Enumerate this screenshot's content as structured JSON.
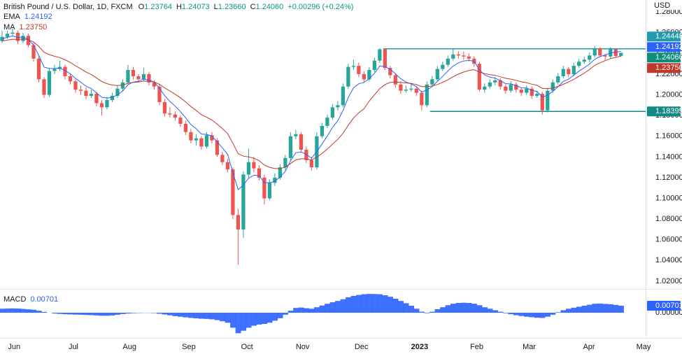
{
  "chart_data": {
    "type": "candlestick",
    "title": "British Pound / U.S. Dollar, 1D, FXCM",
    "quote": [
      {
        "key": "O",
        "value": "1.23764"
      },
      {
        "key": "H",
        "value": "1.24073"
      },
      {
        "key": "L",
        "value": "1.23660"
      },
      {
        "key": "C",
        "value": "1.24060"
      }
    ],
    "change": "+0.00296 (+0.24%)",
    "currency": "USD",
    "up_color": "#26a69a",
    "down_color": "#ef5350",
    "ohlc": [
      [
        1.252,
        1.262,
        1.25,
        1.256
      ],
      [
        1.256,
        1.262,
        1.254,
        1.259
      ],
      [
        1.259,
        1.264,
        1.257,
        1.26
      ],
      [
        1.26,
        1.262,
        1.249,
        1.252
      ],
      [
        1.252,
        1.26,
        1.25,
        1.257
      ],
      [
        1.257,
        1.259,
        1.246,
        1.248
      ],
      [
        1.248,
        1.25,
        1.232,
        1.235
      ],
      [
        1.235,
        1.238,
        1.212,
        1.215
      ],
      [
        1.215,
        1.217,
        1.197,
        1.2
      ],
      [
        1.2,
        1.226,
        1.198,
        1.223
      ],
      [
        1.223,
        1.229,
        1.22,
        1.225
      ],
      [
        1.225,
        1.233,
        1.223,
        1.227
      ],
      [
        1.227,
        1.229,
        1.215,
        1.218
      ],
      [
        1.218,
        1.221,
        1.21,
        1.213
      ],
      [
        1.213,
        1.215,
        1.202,
        1.205
      ],
      [
        1.205,
        1.209,
        1.2,
        1.204
      ],
      [
        1.204,
        1.207,
        1.196,
        1.199
      ],
      [
        1.199,
        1.205,
        1.197,
        1.201
      ],
      [
        1.201,
        1.203,
        1.189,
        1.192
      ],
      [
        1.192,
        1.195,
        1.18,
        1.188
      ],
      [
        1.188,
        1.198,
        1.186,
        1.195
      ],
      [
        1.195,
        1.202,
        1.193,
        1.199
      ],
      [
        1.199,
        1.209,
        1.197,
        1.206
      ],
      [
        1.206,
        1.215,
        1.204,
        1.212
      ],
      [
        1.212,
        1.229,
        1.21,
        1.224
      ],
      [
        1.224,
        1.227,
        1.215,
        1.218
      ],
      [
        1.218,
        1.22,
        1.212,
        1.215
      ],
      [
        1.215,
        1.226,
        1.213,
        1.22
      ],
      [
        1.22,
        1.222,
        1.209,
        1.212
      ],
      [
        1.212,
        1.214,
        1.205,
        1.208
      ],
      [
        1.208,
        1.21,
        1.19,
        1.193
      ],
      [
        1.193,
        1.196,
        1.179,
        1.182
      ],
      [
        1.182,
        1.188,
        1.178,
        1.181
      ],
      [
        1.181,
        1.184,
        1.175,
        1.178
      ],
      [
        1.178,
        1.18,
        1.169,
        1.172
      ],
      [
        1.172,
        1.175,
        1.161,
        1.164
      ],
      [
        1.164,
        1.167,
        1.153,
        1.156
      ],
      [
        1.156,
        1.162,
        1.151,
        1.158
      ],
      [
        1.158,
        1.16,
        1.147,
        1.15
      ],
      [
        1.15,
        1.164,
        1.148,
        1.161
      ],
      [
        1.161,
        1.164,
        1.153,
        1.156
      ],
      [
        1.156,
        1.158,
        1.14,
        1.142
      ],
      [
        1.142,
        1.145,
        1.132,
        1.135
      ],
      [
        1.135,
        1.138,
        1.125,
        1.128
      ],
      [
        1.128,
        1.13,
        1.08,
        1.084
      ],
      [
        1.084,
        1.09,
        1.036,
        1.07
      ],
      [
        1.07,
        1.126,
        1.062,
        1.123
      ],
      [
        1.123,
        1.148,
        1.12,
        1.135
      ],
      [
        1.135,
        1.14,
        1.125,
        1.129
      ],
      [
        1.129,
        1.132,
        1.117,
        1.12
      ],
      [
        1.12,
        1.123,
        1.094,
        1.1
      ],
      [
        1.1,
        1.118,
        1.098,
        1.115
      ],
      [
        1.115,
        1.124,
        1.112,
        1.12
      ],
      [
        1.12,
        1.133,
        1.118,
        1.13
      ],
      [
        1.13,
        1.142,
        1.127,
        1.139
      ],
      [
        1.139,
        1.164,
        1.137,
        1.16
      ],
      [
        1.16,
        1.166,
        1.157,
        1.162
      ],
      [
        1.162,
        1.164,
        1.144,
        1.147
      ],
      [
        1.147,
        1.15,
        1.134,
        1.137
      ],
      [
        1.137,
        1.14,
        1.127,
        1.13
      ],
      [
        1.13,
        1.164,
        1.128,
        1.16
      ],
      [
        1.16,
        1.173,
        1.158,
        1.17
      ],
      [
        1.17,
        1.181,
        1.168,
        1.178
      ],
      [
        1.178,
        1.191,
        1.176,
        1.188
      ],
      [
        1.188,
        1.194,
        1.185,
        1.19
      ],
      [
        1.19,
        1.211,
        1.188,
        1.208
      ],
      [
        1.208,
        1.23,
        1.206,
        1.227
      ],
      [
        1.227,
        1.234,
        1.224,
        1.228
      ],
      [
        1.228,
        1.231,
        1.217,
        1.22
      ],
      [
        1.22,
        1.223,
        1.212,
        1.215
      ],
      [
        1.215,
        1.227,
        1.213,
        1.224
      ],
      [
        1.224,
        1.236,
        1.222,
        1.233
      ],
      [
        1.233,
        1.245,
        1.231,
        1.244
      ],
      [
        1.244,
        1.245,
        1.224,
        1.226
      ],
      [
        1.226,
        1.228,
        1.216,
        1.219
      ],
      [
        1.219,
        1.221,
        1.207,
        1.21
      ],
      [
        1.21,
        1.213,
        1.201,
        1.204
      ],
      [
        1.204,
        1.209,
        1.202,
        1.205
      ],
      [
        1.205,
        1.21,
        1.203,
        1.206
      ],
      [
        1.206,
        1.208,
        1.199,
        1.202
      ],
      [
        1.202,
        1.204,
        1.185,
        1.19
      ],
      [
        1.19,
        1.213,
        1.188,
        1.21
      ],
      [
        1.21,
        1.218,
        1.208,
        1.215
      ],
      [
        1.215,
        1.228,
        1.213,
        1.225
      ],
      [
        1.225,
        1.232,
        1.223,
        1.229
      ],
      [
        1.229,
        1.238,
        1.227,
        1.235
      ],
      [
        1.235,
        1.244,
        1.233,
        1.239
      ],
      [
        1.239,
        1.242,
        1.235,
        1.238
      ],
      [
        1.238,
        1.242,
        1.234,
        1.237
      ],
      [
        1.237,
        1.24,
        1.232,
        1.235
      ],
      [
        1.235,
        1.237,
        1.227,
        1.23
      ],
      [
        1.23,
        1.232,
        1.203,
        1.205
      ],
      [
        1.205,
        1.211,
        1.202,
        1.208
      ],
      [
        1.208,
        1.215,
        1.206,
        1.212
      ],
      [
        1.212,
        1.217,
        1.209,
        1.214
      ],
      [
        1.214,
        1.216,
        1.205,
        1.208
      ],
      [
        1.208,
        1.21,
        1.201,
        1.204
      ],
      [
        1.204,
        1.213,
        1.202,
        1.21
      ],
      [
        1.21,
        1.212,
        1.202,
        1.205
      ],
      [
        1.205,
        1.207,
        1.199,
        1.202
      ],
      [
        1.202,
        1.209,
        1.2,
        1.206
      ],
      [
        1.206,
        1.208,
        1.196,
        1.199
      ],
      [
        1.199,
        1.204,
        1.197,
        1.201
      ],
      [
        1.201,
        1.203,
        1.181,
        1.185
      ],
      [
        1.185,
        1.207,
        1.183,
        1.204
      ],
      [
        1.204,
        1.215,
        1.202,
        1.212
      ],
      [
        1.212,
        1.221,
        1.21,
        1.218
      ],
      [
        1.218,
        1.228,
        1.216,
        1.225
      ],
      [
        1.225,
        1.227,
        1.217,
        1.22
      ],
      [
        1.22,
        1.231,
        1.218,
        1.228
      ],
      [
        1.228,
        1.235,
        1.226,
        1.232
      ],
      [
        1.232,
        1.237,
        1.23,
        1.234
      ],
      [
        1.234,
        1.241,
        1.231,
        1.238
      ],
      [
        1.238,
        1.247,
        1.236,
        1.245
      ],
      [
        1.245,
        1.246,
        1.236,
        1.238
      ],
      [
        1.238,
        1.24,
        1.234,
        1.237
      ],
      [
        1.237,
        1.246,
        1.235,
        1.244
      ],
      [
        1.244,
        1.245,
        1.236,
        1.2376
      ],
      [
        1.23764,
        1.24073,
        1.2366,
        1.2406
      ]
    ],
    "series": [
      {
        "name": "EMA",
        "value_label": "1.24192",
        "color": "#2962ff",
        "values": [
          1.254,
          1.2555,
          1.2569,
          1.2554,
          1.2559,
          1.2535,
          1.248,
          1.2381,
          1.2267,
          1.2256,
          1.2254,
          1.2259,
          1.2235,
          1.2204,
          1.2158,
          1.2123,
          1.2083,
          1.2061,
          1.2019,
          1.1977,
          1.1969,
          1.1975,
          1.2001,
          1.2037,
          1.2098,
          1.2123,
          1.2131,
          1.2152,
          1.2142,
          1.2123,
          1.2065,
          1.1992,
          1.1937,
          1.189,
          1.1839,
          1.1779,
          1.1713,
          1.1673,
          1.1621,
          1.1618,
          1.1601,
          1.1547,
          1.1488,
          1.1426,
          1.125,
          1.1085,
          1.1129,
          1.1195,
          1.1224,
          1.1217,
          1.1152,
          1.1151,
          1.1166,
          1.1206,
          1.1261,
          1.1363,
          1.144,
          1.1449,
          1.1425,
          1.1388,
          1.1452,
          1.1526,
          1.1602,
          1.1685,
          1.175,
          1.1849,
          1.1975,
          1.2067,
          1.2107,
          1.212,
          1.2156,
          1.2208,
          1.2278,
          1.2273,
          1.2248,
          1.2204,
          1.2155,
          1.2124,
          1.2105,
          1.208,
          1.2026,
          1.2048,
          1.2079,
          1.213,
          1.2178,
          1.223,
          1.2278,
          1.2309,
          1.2327,
          1.2334,
          1.2324,
          1.2242,
          1.2193,
          1.2171,
          1.2162,
          1.2137,
          1.2108,
          1.2106,
          1.2089,
          1.2068,
          1.2066,
          1.2043,
          1.2033,
          1.1978,
          1.1997,
          1.2034,
          1.2078,
          1.213,
          1.2151,
          1.219,
          1.2229,
          1.2262,
          1.2297,
          1.2343,
          1.237,
          1.2385,
          1.2405,
          1.2412,
          1.24192
        ]
      },
      {
        "name": "MA",
        "value_label": "1.23750",
        "color": "#c0392b",
        "values": [
          1.252,
          1.2528,
          1.2537,
          1.2535,
          1.2539,
          1.2532,
          1.251,
          1.2467,
          1.2411,
          1.2389,
          1.2372,
          1.236,
          1.2338,
          1.2313,
          1.2281,
          1.2252,
          1.2221,
          1.2196,
          1.2163,
          1.2129,
          1.2108,
          1.2094,
          1.209,
          1.2094,
          1.2112,
          1.212,
          1.2124,
          1.2133,
          1.2131,
          1.2125,
          1.2102,
          1.2068,
          1.2037,
          1.2006,
          1.1972,
          1.1932,
          1.1887,
          1.185,
          1.1808,
          1.1784,
          1.1757,
          1.1717,
          1.1673,
          1.1626,
          1.1532,
          1.1432,
          1.1408,
          1.1401,
          1.1388,
          1.1365,
          1.1321,
          1.13,
          1.1288,
          1.1289,
          1.1301,
          1.1337,
          1.1371,
          1.1383,
          1.1381,
          1.1371,
          1.1398,
          1.1434,
          1.1476,
          1.1524,
          1.1569,
          1.163,
          1.1707,
          1.1776,
          1.1827,
          1.1866,
          1.194,
          1.2,
          1.206,
          1.21,
          1.212,
          1.2125,
          1.212,
          1.2115,
          1.211,
          1.21,
          1.208,
          1.208,
          1.2085,
          1.21,
          1.212,
          1.2145,
          1.2175,
          1.22,
          1.222,
          1.2235,
          1.2243,
          1.222,
          1.2205,
          1.2195,
          1.2188,
          1.2175,
          1.216,
          1.2152,
          1.214,
          1.2126,
          1.2118,
          1.2103,
          1.2092,
          1.2063,
          1.206,
          1.2067,
          1.2081,
          1.2102,
          1.2125,
          1.215,
          1.218,
          1.221,
          1.2245,
          1.2285,
          1.231,
          1.233,
          1.235,
          1.2362,
          1.2375
        ]
      }
    ],
    "last_price": {
      "value": 1.2406,
      "label": "1.24060",
      "color": "#0b8f7c"
    },
    "levels": [
      {
        "value": 1.24448,
        "label": "1.24448",
        "start": 72.7,
        "color": "#1e9cae"
      },
      {
        "value": 1.18395,
        "label": "1.18395",
        "start": 81.6,
        "color": "#138a86"
      }
    ],
    "xlim": [
      -0.4,
      122.3
    ],
    "xticks": [
      {
        "value": 2.3,
        "label": "Jun"
      },
      {
        "value": 13.6,
        "label": "Jul"
      },
      {
        "value": 24.3,
        "label": "Aug"
      },
      {
        "value": 35.6,
        "label": "Sep"
      },
      {
        "value": 46.7,
        "label": "Oct"
      },
      {
        "value": 57.3,
        "label": "Nov"
      },
      {
        "value": 68.5,
        "label": "Dec"
      },
      {
        "value": 79.6,
        "label": "2023"
      },
      {
        "value": 90.5,
        "label": "Feb"
      },
      {
        "value": 100.5,
        "label": "Mar"
      },
      {
        "value": 111.9,
        "label": "Apr"
      },
      {
        "value": 122.3,
        "label": "May"
      }
    ],
    "ylim": [
      1.0132,
      1.2916
    ],
    "yticks": [
      {
        "value": 1.02,
        "label": "1.02000"
      },
      {
        "value": 1.04,
        "label": "1.04000"
      },
      {
        "value": 1.06,
        "label": "1.06000"
      },
      {
        "value": 1.08,
        "label": "1.08000"
      },
      {
        "value": 1.1,
        "label": "1.10000"
      },
      {
        "value": 1.12,
        "label": "1.12000"
      },
      {
        "value": 1.14,
        "label": "1.14000"
      },
      {
        "value": 1.16,
        "label": "1.16000"
      },
      {
        "value": 1.18,
        "label": "1.18000"
      },
      {
        "value": 1.2,
        "label": "1.20000"
      },
      {
        "value": 1.22,
        "label": "1.22000"
      },
      {
        "value": 1.24,
        "label": "1.24000"
      },
      {
        "value": 1.26,
        "label": "1.26000"
      },
      {
        "value": 1.28,
        "label": "1.28000"
      }
    ],
    "macd": {
      "name": "MACD",
      "value_label": "0.00701",
      "color": "#2962ff",
      "ylim": [
        -0.0245,
        0.0224
      ],
      "yticks": [
        {
          "value": 0,
          "label": "0.00000"
        }
      ],
      "values": [
        0.004,
        0.0042,
        0.0043,
        0.0042,
        0.0038,
        0.0034,
        0.003,
        0.002,
        0.0008,
        0.0,
        -0.0008,
        -0.0012,
        -0.0015,
        -0.0017,
        -0.0019,
        -0.002,
        -0.0022,
        -0.0024,
        -0.0027,
        -0.003,
        -0.003,
        -0.0027,
        -0.002,
        -0.0013,
        -0.0008,
        -0.0005,
        -0.0003,
        -0.0002,
        -0.0002,
        -0.0004,
        -0.001,
        -0.0018,
        -0.0026,
        -0.0034,
        -0.004,
        -0.0046,
        -0.0052,
        -0.0056,
        -0.006,
        -0.0062,
        -0.0066,
        -0.0074,
        -0.0085,
        -0.01,
        -0.015,
        -0.0205,
        -0.018,
        -0.015,
        -0.013,
        -0.0118,
        -0.0112,
        -0.01,
        -0.008,
        -0.0055,
        -0.002,
        0.002,
        0.0048,
        0.0052,
        0.0045,
        0.004,
        0.0055,
        0.0072,
        0.009,
        0.0105,
        0.0118,
        0.0135,
        0.0155,
        0.0168,
        0.0178,
        0.0185,
        0.0188,
        0.0187,
        0.0185,
        0.0175,
        0.016,
        0.014,
        0.0118,
        0.0095,
        0.007,
        0.004,
        0.001,
        -0.0005,
        0.001,
        0.0035,
        0.0055,
        0.0075,
        0.009,
        0.0098,
        0.01,
        0.0098,
        0.009,
        0.0075,
        0.0055,
        0.004,
        0.0025,
        0.001,
        -0.0005,
        -0.0015,
        -0.0025,
        -0.0033,
        -0.004,
        -0.0045,
        -0.005,
        -0.0052,
        -0.004,
        -0.002,
        0.0005,
        0.0025,
        0.004,
        0.005,
        0.006,
        0.007,
        0.008,
        0.009,
        0.0092,
        0.0088,
        0.0085,
        0.0078,
        0.00701
      ]
    }
  }
}
